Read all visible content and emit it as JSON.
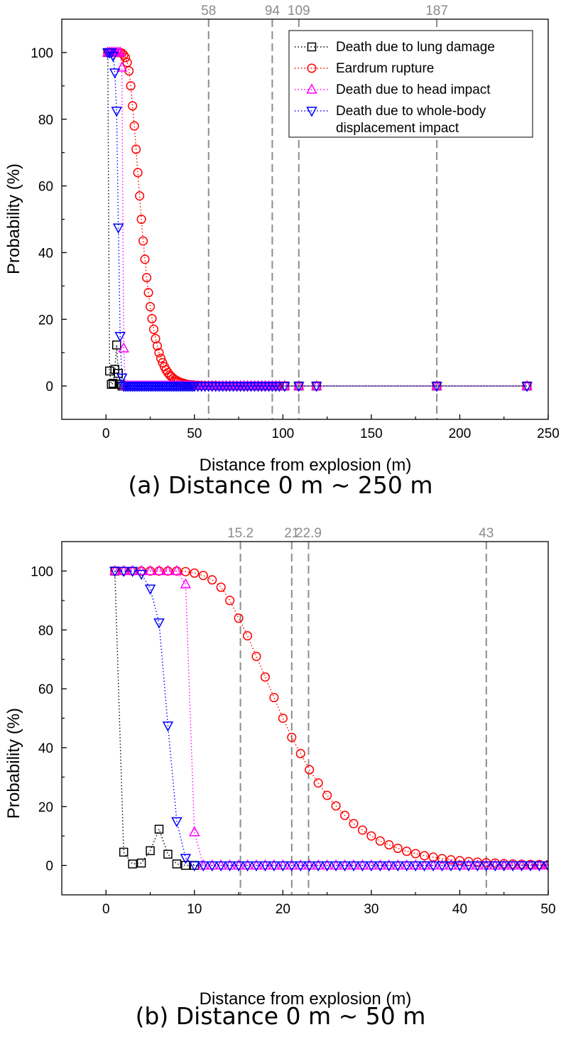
{
  "chart_data": [
    {
      "id": "a",
      "type": "line",
      "caption": "(a) Distance 0 m ~ 250 m",
      "xlabel": "Distance from explosion (m)",
      "ylabel": "Probability (%)",
      "xlim": [
        -25,
        250
      ],
      "ylim": [
        -10,
        110
      ],
      "xticks": [
        0,
        50,
        100,
        150,
        200,
        250
      ],
      "yticks": [
        0,
        20,
        40,
        60,
        80,
        100
      ],
      "reference_lines": [
        58,
        94,
        109,
        187
      ],
      "reference_labels": [
        "58",
        "94",
        "109",
        "187"
      ],
      "legend": {
        "position": "top-right",
        "entries": [
          "Death due to lung damage",
          "Eardrum rupture",
          "Death due to head impact",
          "Death due to whole-body",
          "displacement impact"
        ]
      },
      "series": [
        {
          "name": "Death due to lung damage",
          "color": "#000000",
          "marker": "square",
          "x": [
            1,
            2,
            3,
            4,
            5,
            6,
            7,
            8,
            9,
            10,
            101,
            109,
            119,
            187,
            238
          ],
          "y": [
            100,
            4.5,
            0.5,
            0.8,
            5,
            12.3,
            3.8,
            0.5,
            0,
            0,
            0,
            0,
            0,
            0,
            0
          ]
        },
        {
          "name": "Eardrum rupture",
          "color": "#ff0000",
          "marker": "circle",
          "x": [
            1,
            2,
            3,
            4,
            5,
            6,
            7,
            8,
            9,
            10,
            11,
            12,
            13,
            14,
            15,
            16,
            17,
            18,
            19,
            20,
            21,
            22,
            23,
            24,
            25,
            26,
            27,
            28,
            29,
            30,
            31,
            32,
            33,
            34,
            35,
            36,
            37,
            38,
            39,
            40,
            41,
            42,
            43,
            44,
            45,
            46,
            47,
            48,
            49,
            50,
            52,
            54,
            56,
            58,
            60,
            62,
            64,
            66,
            68,
            70,
            72,
            74,
            76,
            78,
            80,
            82,
            84,
            86,
            88,
            90,
            92,
            94,
            96,
            98,
            101,
            109,
            119,
            187,
            238
          ],
          "y": [
            100,
            100,
            100,
            100,
            100,
            100,
            100,
            100,
            99.8,
            99.3,
            98.5,
            97,
            94.5,
            90,
            84,
            78,
            71,
            64,
            57,
            50,
            43.5,
            38,
            32.5,
            28,
            23.8,
            20.2,
            17,
            14.2,
            12,
            10,
            8.3,
            7,
            5.8,
            4.8,
            4,
            3.3,
            2.8,
            2.3,
            1.9,
            1.6,
            1.3,
            1.1,
            0.9,
            0.8,
            0.6,
            0.5,
            0.4,
            0.35,
            0.3,
            0.25,
            0.2,
            0.15,
            0.1,
            0.1,
            0.1,
            0.1,
            0,
            0,
            0,
            0,
            0,
            0,
            0,
            0,
            0,
            0,
            0,
            0,
            0,
            0,
            0,
            0,
            0,
            0,
            0,
            0,
            0,
            0,
            0
          ]
        },
        {
          "name": "Death due to head impact",
          "color": "#ff00ff",
          "marker": "triangle-up",
          "x": [
            1,
            2,
            3,
            4,
            5,
            6,
            7,
            8,
            9,
            10,
            11,
            12,
            13,
            14,
            15,
            16,
            17,
            18,
            19,
            20,
            21,
            22,
            23,
            24,
            25,
            26,
            27,
            28,
            29,
            30,
            31,
            32,
            33,
            34,
            35,
            36,
            37,
            38,
            39,
            40,
            41,
            42,
            43,
            44,
            45,
            46,
            47,
            48,
            49,
            50,
            52,
            54,
            56,
            58,
            60,
            62,
            64,
            66,
            68,
            70,
            72,
            74,
            76,
            78,
            80,
            82,
            84,
            86,
            88,
            90,
            92,
            94,
            96,
            98,
            101,
            109,
            119,
            187,
            238
          ],
          "y": [
            100,
            100,
            100,
            100,
            100,
            100,
            100,
            100,
            95.5,
            11.3,
            0,
            0,
            0,
            0,
            0,
            0,
            0,
            0,
            0,
            0,
            0,
            0,
            0,
            0,
            0,
            0,
            0,
            0,
            0,
            0,
            0,
            0,
            0,
            0,
            0,
            0,
            0,
            0,
            0,
            0,
            0,
            0,
            0,
            0,
            0,
            0,
            0,
            0,
            0,
            0,
            0,
            0,
            0,
            0,
            0,
            0,
            0,
            0,
            0,
            0,
            0,
            0,
            0,
            0,
            0,
            0,
            0,
            0,
            0,
            0,
            0,
            0,
            0,
            0,
            0,
            0,
            0,
            0,
            0
          ]
        },
        {
          "name": "Death due to whole-body displacement impact",
          "color": "#0000ff",
          "marker": "triangle-down",
          "x": [
            1,
            2,
            3,
            4,
            5,
            6,
            7,
            8,
            9,
            10,
            11,
            12,
            13,
            14,
            15,
            16,
            17,
            18,
            19,
            20,
            21,
            22,
            23,
            24,
            25,
            26,
            27,
            28,
            29,
            30,
            31,
            32,
            33,
            34,
            35,
            36,
            37,
            38,
            39,
            40,
            41,
            42,
            43,
            44,
            45,
            46,
            47,
            48,
            49,
            50,
            52,
            54,
            56,
            58,
            60,
            62,
            64,
            66,
            68,
            70,
            72,
            74,
            76,
            78,
            80,
            82,
            84,
            86,
            88,
            90,
            92,
            94,
            96,
            98,
            101,
            109,
            119,
            187,
            238
          ],
          "y": [
            100,
            100,
            100,
            99,
            94,
            82.5,
            47.5,
            15,
            2.5,
            0,
            0,
            0,
            0,
            0,
            0,
            0,
            0,
            0,
            0,
            0,
            0,
            0,
            0,
            0,
            0,
            0,
            0,
            0,
            0,
            0,
            0,
            0,
            0,
            0,
            0,
            0,
            0,
            0,
            0,
            0,
            0,
            0,
            0,
            0,
            0,
            0,
            0,
            0,
            0,
            0,
            0,
            0,
            0,
            0,
            0,
            0,
            0,
            0,
            0,
            0,
            0,
            0,
            0,
            0,
            0,
            0,
            0,
            0,
            0,
            0,
            0,
            0,
            0,
            0,
            0,
            0,
            0,
            0,
            0
          ]
        }
      ]
    },
    {
      "id": "b",
      "type": "line",
      "caption": "(b) Distance 0 m ~ 50 m",
      "xlabel": "Distance from explosion (m)",
      "ylabel": "Probability (%)",
      "xlim": [
        -5,
        50
      ],
      "ylim": [
        -10,
        110
      ],
      "xticks": [
        0,
        10,
        20,
        30,
        40,
        50
      ],
      "yticks": [
        0,
        20,
        40,
        60,
        80,
        100
      ],
      "reference_lines": [
        15.2,
        21,
        22.9,
        43
      ],
      "reference_labels": [
        "15.2",
        "21",
        "22.9",
        "43"
      ],
      "series": [
        {
          "name": "Death due to lung damage",
          "color": "#000000",
          "marker": "square",
          "x": [
            1,
            2,
            3,
            4,
            5,
            6,
            7,
            8,
            9,
            10
          ],
          "y": [
            100,
            4.5,
            0.5,
            0.8,
            5,
            12.3,
            3.8,
            0.5,
            0,
            0
          ]
        },
        {
          "name": "Eardrum rupture",
          "color": "#ff0000",
          "marker": "circle",
          "x": [
            1,
            2,
            3,
            4,
            5,
            6,
            7,
            8,
            9,
            10,
            11,
            12,
            13,
            14,
            15,
            16,
            17,
            18,
            19,
            20,
            21,
            22,
            23,
            24,
            25,
            26,
            27,
            28,
            29,
            30,
            31,
            32,
            33,
            34,
            35,
            36,
            37,
            38,
            39,
            40,
            41,
            42,
            43,
            44,
            45,
            46,
            47,
            48,
            49,
            50
          ],
          "y": [
            100,
            100,
            100,
            100,
            100,
            100,
            100,
            100,
            99.8,
            99.3,
            98.5,
            97,
            94.5,
            90,
            84,
            78,
            71,
            64,
            57,
            50,
            43.5,
            38,
            32.5,
            28,
            23.8,
            20.2,
            17,
            14.2,
            12,
            10,
            8.3,
            7,
            5.8,
            4.8,
            4,
            3.3,
            2.8,
            2.3,
            1.9,
            1.6,
            1.3,
            1.1,
            0.9,
            0.8,
            0.6,
            0.5,
            0.4,
            0.35,
            0.3,
            0.25
          ]
        },
        {
          "name": "Death due to head impact",
          "color": "#ff00ff",
          "marker": "triangle-up",
          "x": [
            1,
            2,
            3,
            4,
            5,
            6,
            7,
            8,
            9,
            10,
            11,
            12,
            13,
            14,
            15,
            16,
            17,
            18,
            19,
            20,
            21,
            22,
            23,
            24,
            25,
            26,
            27,
            28,
            29,
            30,
            31,
            32,
            33,
            34,
            35,
            36,
            37,
            38,
            39,
            40,
            41,
            42,
            43,
            44,
            45,
            46,
            47,
            48,
            49,
            50
          ],
          "y": [
            100,
            100,
            100,
            100,
            100,
            100,
            100,
            100,
            95.5,
            11.3,
            0,
            0,
            0,
            0,
            0,
            0,
            0,
            0,
            0,
            0,
            0,
            0,
            0,
            0,
            0,
            0,
            0,
            0,
            0,
            0,
            0,
            0,
            0,
            0,
            0,
            0,
            0,
            0,
            0,
            0,
            0,
            0,
            0,
            0,
            0,
            0,
            0,
            0,
            0,
            0
          ]
        },
        {
          "name": "Death due to whole-body displacement impact",
          "color": "#0000ff",
          "marker": "triangle-down",
          "x": [
            1,
            2,
            3,
            4,
            5,
            6,
            7,
            8,
            9,
            10,
            11,
            12,
            13,
            14,
            15,
            16,
            17,
            18,
            19,
            20,
            21,
            22,
            23,
            24,
            25,
            26,
            27,
            28,
            29,
            30,
            31,
            32,
            33,
            34,
            35,
            36,
            37,
            38,
            39,
            40,
            41,
            42,
            43,
            44,
            45,
            46,
            47,
            48,
            49,
            50
          ],
          "y": [
            100,
            100,
            100,
            99,
            94,
            82.5,
            47.5,
            15,
            2.5,
            0,
            0,
            0,
            0,
            0,
            0,
            0,
            0,
            0,
            0,
            0,
            0,
            0,
            0,
            0,
            0,
            0,
            0,
            0,
            0,
            0,
            0,
            0,
            0,
            0,
            0,
            0,
            0,
            0,
            0,
            0,
            0,
            0,
            0,
            0,
            0,
            0,
            0,
            0,
            0,
            0
          ]
        }
      ]
    }
  ],
  "colors": {
    "reference_line": "#8c8c8c"
  }
}
